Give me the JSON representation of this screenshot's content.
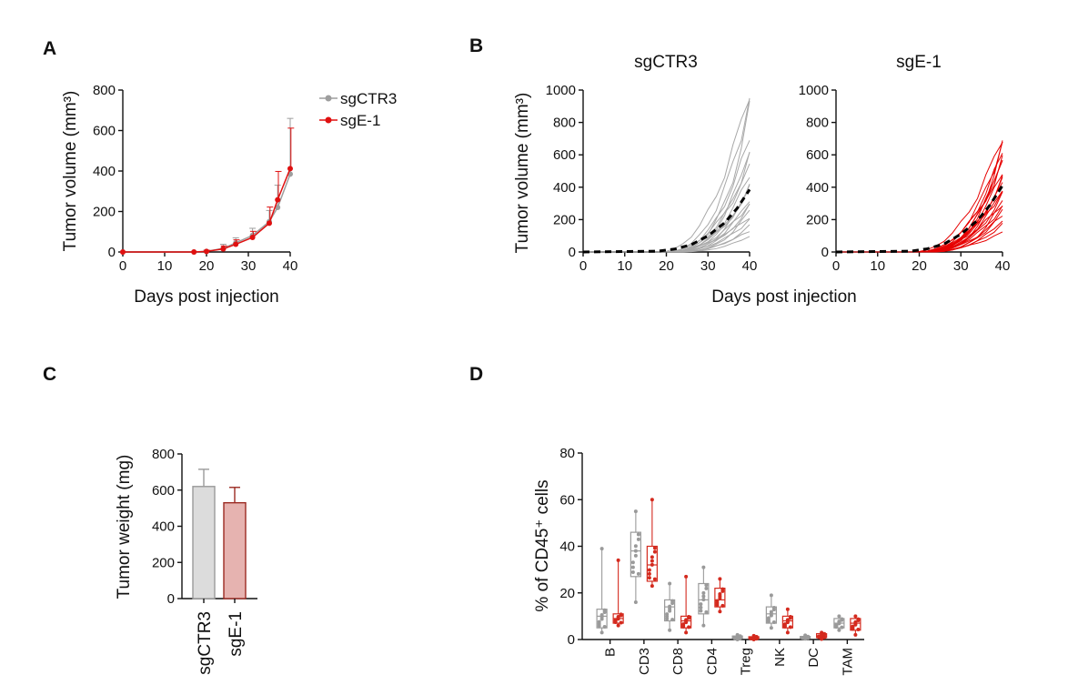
{
  "panels": {
    "A": {
      "label": "A",
      "chart_data": {
        "type": "line",
        "ylabel": "Tumor volume (mm³)",
        "xlabel": "Days post injection",
        "xlim": [
          0,
          40
        ],
        "ylim": [
          0,
          800
        ],
        "xticks": [
          "0",
          "10",
          "20",
          "30",
          "40"
        ],
        "yticks": [
          "0",
          "200",
          "400",
          "600",
          "800"
        ],
        "legend_position": "top-right",
        "x": [
          0,
          17,
          20,
          24,
          27,
          31,
          35,
          37,
          40
        ],
        "series": [
          {
            "name": "sgCTR3",
            "color": "#9e9e9e",
            "values": [
              0,
              0,
              3,
              18,
              45,
              82,
              150,
              220,
              385
            ],
            "err": [
              0,
              0,
              6,
              20,
              25,
              35,
              55,
              110,
              275
            ]
          },
          {
            "name": "sgE-1",
            "color": "#e01010",
            "values": [
              0,
              0,
              3,
              15,
              38,
              72,
              142,
              258,
              412
            ],
            "err": [
              0,
              0,
              5,
              15,
              22,
              30,
              80,
              140,
              200
            ]
          }
        ]
      }
    },
    "B": {
      "label": "B",
      "xlabel": "Days post injection",
      "ylabel": "Tumor volume (mm³)",
      "chart_data": [
        {
          "type": "line",
          "title": "sgCTR3",
          "color": "#a9a9a9",
          "xlim": [
            0,
            40
          ],
          "ylim": [
            0,
            1000
          ],
          "xticks": [
            "0",
            "10",
            "20",
            "30",
            "40"
          ],
          "yticks": [
            "0",
            "200",
            "400",
            "600",
            "800",
            "1000"
          ],
          "mean": {
            "x": [
              0,
              18,
              22,
              26,
              30,
              34,
              37,
              40
            ],
            "y": [
              0,
              5,
              18,
              45,
              100,
              180,
              270,
              385
            ]
          },
          "finals": [
            1000,
            950,
            880,
            700,
            650,
            600,
            520,
            480,
            430,
            400,
            380,
            330,
            300,
            280,
            260,
            220,
            200,
            160,
            130,
            100
          ]
        },
        {
          "type": "line",
          "title": "sgE-1",
          "color": "#e60000",
          "xlim": [
            0,
            40
          ],
          "ylim": [
            0,
            1000
          ],
          "xticks": [
            "0",
            "10",
            "20",
            "30",
            "40"
          ],
          "yticks": [
            "0",
            "200",
            "400",
            "600",
            "800",
            "1000"
          ],
          "mean": {
            "x": [
              0,
              18,
              22,
              26,
              30,
              34,
              37,
              40
            ],
            "y": [
              0,
              5,
              20,
              50,
              110,
              195,
              290,
              410
            ]
          },
          "finals": [
            720,
            680,
            650,
            620,
            600,
            580,
            540,
            500,
            480,
            450,
            420,
            400,
            380,
            350,
            320,
            300,
            280,
            250,
            230,
            200,
            170,
            120
          ]
        }
      ]
    },
    "C": {
      "label": "C",
      "chart_data": {
        "type": "bar",
        "ylabel": "Tumor weight (mg)",
        "categories": [
          "sgCTR3",
          "sgE-1"
        ],
        "values": [
          620,
          530
        ],
        "err": [
          95,
          85
        ],
        "fills": [
          "#dcdcdc",
          "#e6b3b0"
        ],
        "strokes": [
          "#9a9a9a",
          "#9b2a22"
        ],
        "ylim": [
          0,
          800
        ],
        "yticks": [
          "0",
          "200",
          "400",
          "600",
          "800"
        ]
      }
    },
    "D": {
      "label": "D",
      "chart_data": {
        "type": "box",
        "ylabel": "% of CD45⁺ cells",
        "ylim": [
          0,
          80
        ],
        "yticks": [
          "0",
          "20",
          "40",
          "60",
          "80"
        ],
        "categories": [
          "B",
          "CD3",
          "CD8",
          "CD4",
          "Treg",
          "NK",
          "DC",
          "TAM"
        ],
        "series": [
          {
            "name": "sgCTR3",
            "color": "#9a9a9a",
            "boxes": [
              {
                "min": 3,
                "q1": 5,
                "median": 10,
                "q3": 13,
                "max": 39
              },
              {
                "min": 16,
                "q1": 27,
                "median": 38,
                "q3": 46,
                "max": 55
              },
              {
                "min": 4,
                "q1": 8,
                "median": 14,
                "q3": 17,
                "max": 24
              },
              {
                "min": 6,
                "q1": 11,
                "median": 17,
                "q3": 24,
                "max": 31
              },
              {
                "min": 0,
                "q1": 0.5,
                "median": 1,
                "q3": 1.5,
                "max": 2
              },
              {
                "min": 5,
                "q1": 7,
                "median": 11,
                "q3": 14,
                "max": 19
              },
              {
                "min": 0.3,
                "q1": 0.6,
                "median": 1,
                "q3": 1.3,
                "max": 1.8
              },
              {
                "min": 4,
                "q1": 5,
                "median": 7,
                "q3": 9,
                "max": 10
              }
            ]
          },
          {
            "name": "sgE-1",
            "color": "#d42a1e",
            "boxes": [
              {
                "min": 6,
                "q1": 7,
                "median": 9,
                "q3": 11,
                "max": 34
              },
              {
                "min": 23,
                "q1": 25,
                "median": 32,
                "q3": 40,
                "max": 60
              },
              {
                "min": 3,
                "q1": 5,
                "median": 8,
                "q3": 10,
                "max": 27
              },
              {
                "min": 12,
                "q1": 14,
                "median": 17,
                "q3": 22,
                "max": 26
              },
              {
                "min": 0,
                "q1": 0.3,
                "median": 0.7,
                "q3": 1.2,
                "max": 1.6
              },
              {
                "min": 3,
                "q1": 5,
                "median": 8,
                "q3": 10,
                "max": 13
              },
              {
                "min": 0.2,
                "q1": 0.8,
                "median": 1.5,
                "q3": 2.5,
                "max": 3
              },
              {
                "min": 2,
                "q1": 4,
                "median": 7,
                "q3": 9,
                "max": 10
              }
            ]
          }
        ]
      }
    }
  }
}
